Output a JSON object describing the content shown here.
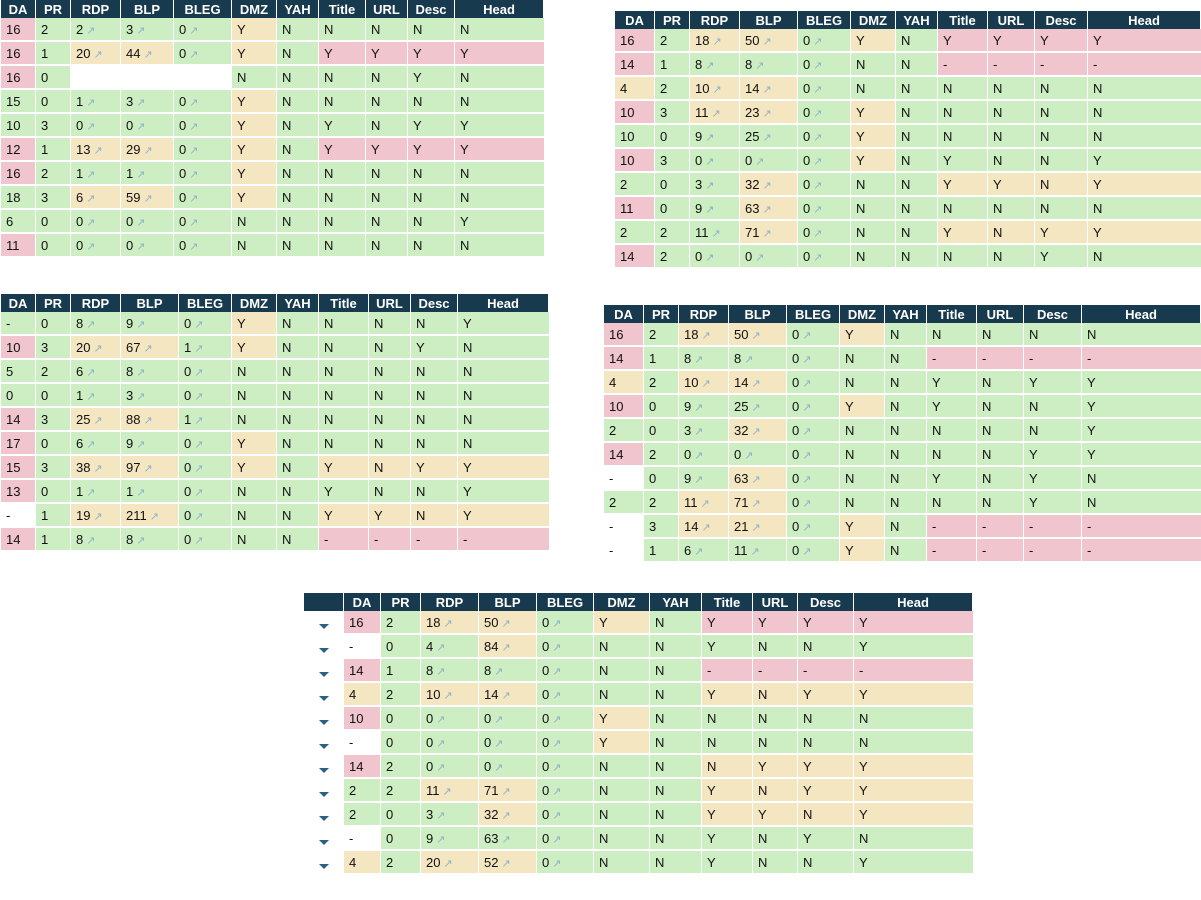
{
  "columns": [
    "DA",
    "PR",
    "RDP",
    "BLP",
    "BLEG",
    "DMZ",
    "YAH",
    "Title",
    "URL",
    "Desc",
    "Head"
  ],
  "trend_glyph": "↗",
  "colors": {
    "header": "#173a4f",
    "green": "#cdeec2",
    "yellow": "#f5e6c2",
    "pink": "#f1c5cd"
  },
  "tables": [
    {
      "rows": [
        [
          "16",
          "2",
          "2",
          "3",
          "0",
          "Y",
          "N",
          "N",
          "N",
          "N",
          "N"
        ],
        [
          "16",
          "1",
          "20",
          "44",
          "0",
          "Y",
          "N",
          "Y",
          "Y",
          "Y",
          "Y"
        ],
        [
          "16",
          "0",
          "",
          "",
          "",
          "N",
          "N",
          "N",
          "N",
          "Y",
          "N"
        ],
        [
          "15",
          "0",
          "1",
          "3",
          "0",
          "Y",
          "N",
          "N",
          "N",
          "N",
          "N"
        ],
        [
          "10",
          "3",
          "0",
          "0",
          "0",
          "Y",
          "N",
          "Y",
          "N",
          "Y",
          "Y"
        ],
        [
          "12",
          "1",
          "13",
          "29",
          "0",
          "Y",
          "N",
          "Y",
          "Y",
          "Y",
          "Y"
        ],
        [
          "16",
          "2",
          "1",
          "1",
          "0",
          "Y",
          "N",
          "N",
          "N",
          "N",
          "N"
        ],
        [
          "18",
          "3",
          "6",
          "59",
          "0",
          "Y",
          "N",
          "N",
          "N",
          "N",
          "N"
        ],
        [
          "6",
          "0",
          "0",
          "0",
          "0",
          "N",
          "N",
          "N",
          "N",
          "N",
          "Y"
        ],
        [
          "11",
          "0",
          "0",
          "0",
          "0",
          "N",
          "N",
          "N",
          "N",
          "N",
          "N"
        ]
      ]
    },
    {
      "rows": [
        [
          "16",
          "2",
          "18",
          "50",
          "0",
          "Y",
          "N",
          "Y",
          "Y",
          "Y",
          "Y"
        ],
        [
          "14",
          "1",
          "8",
          "8",
          "0",
          "N",
          "N",
          "-",
          "-",
          "-",
          "-"
        ],
        [
          "4",
          "2",
          "10",
          "14",
          "0",
          "N",
          "N",
          "N",
          "N",
          "N",
          "N"
        ],
        [
          "10",
          "3",
          "11",
          "23",
          "0",
          "Y",
          "N",
          "N",
          "N",
          "N",
          "N"
        ],
        [
          "10",
          "0",
          "9",
          "25",
          "0",
          "Y",
          "N",
          "N",
          "N",
          "N",
          "N"
        ],
        [
          "10",
          "3",
          "0",
          "0",
          "0",
          "Y",
          "N",
          "Y",
          "N",
          "N",
          "Y"
        ],
        [
          "2",
          "0",
          "3",
          "32",
          "0",
          "N",
          "N",
          "Y",
          "Y",
          "N",
          "Y"
        ],
        [
          "11",
          "0",
          "9",
          "63",
          "0",
          "N",
          "N",
          "N",
          "N",
          "N",
          "N"
        ],
        [
          "2",
          "2",
          "11",
          "71",
          "0",
          "N",
          "N",
          "Y",
          "N",
          "Y",
          "Y"
        ],
        [
          "14",
          "2",
          "0",
          "0",
          "0",
          "N",
          "N",
          "N",
          "N",
          "Y",
          "N"
        ]
      ]
    },
    {
      "rows": [
        [
          "-",
          "0",
          "8",
          "9",
          "0",
          "Y",
          "N",
          "N",
          "N",
          "N",
          "Y"
        ],
        [
          "10",
          "3",
          "20",
          "67",
          "1",
          "Y",
          "N",
          "N",
          "N",
          "Y",
          "N"
        ],
        [
          "5",
          "2",
          "6",
          "8",
          "0",
          "N",
          "N",
          "N",
          "N",
          "N",
          "N"
        ],
        [
          "0",
          "0",
          "1",
          "3",
          "0",
          "N",
          "N",
          "N",
          "N",
          "N",
          "N"
        ],
        [
          "14",
          "3",
          "25",
          "88",
          "1",
          "N",
          "N",
          "N",
          "N",
          "N",
          "N"
        ],
        [
          "17",
          "0",
          "6",
          "9",
          "0",
          "Y",
          "N",
          "N",
          "N",
          "N",
          "N"
        ],
        [
          "15",
          "3",
          "38",
          "97",
          "0",
          "Y",
          "N",
          "Y",
          "N",
          "Y",
          "Y"
        ],
        [
          "13",
          "0",
          "1",
          "1",
          "0",
          "N",
          "N",
          "Y",
          "N",
          "N",
          "Y"
        ],
        [
          "-",
          "1",
          "19",
          "211",
          "0",
          "N",
          "N",
          "Y",
          "Y",
          "N",
          "Y"
        ],
        [
          "14",
          "1",
          "8",
          "8",
          "0",
          "N",
          "N",
          "-",
          "-",
          "-",
          "-"
        ]
      ]
    },
    {
      "rows": [
        [
          "16",
          "2",
          "18",
          "50",
          "0",
          "Y",
          "N",
          "N",
          "N",
          "N",
          "N"
        ],
        [
          "14",
          "1",
          "8",
          "8",
          "0",
          "N",
          "N",
          "-",
          "-",
          "-",
          "-"
        ],
        [
          "4",
          "2",
          "10",
          "14",
          "0",
          "N",
          "N",
          "Y",
          "N",
          "Y",
          "Y"
        ],
        [
          "10",
          "0",
          "9",
          "25",
          "0",
          "Y",
          "N",
          "Y",
          "N",
          "N",
          "Y"
        ],
        [
          "2",
          "0",
          "3",
          "32",
          "0",
          "N",
          "N",
          "N",
          "N",
          "N",
          "Y"
        ],
        [
          "14",
          "2",
          "0",
          "0",
          "0",
          "N",
          "N",
          "N",
          "N",
          "Y",
          "Y"
        ],
        [
          "-",
          "0",
          "9",
          "63",
          "0",
          "N",
          "N",
          "Y",
          "N",
          "Y",
          "N"
        ],
        [
          "2",
          "2",
          "11",
          "71",
          "0",
          "N",
          "N",
          "N",
          "N",
          "Y",
          "N"
        ],
        [
          "-",
          "3",
          "14",
          "21",
          "0",
          "Y",
          "N",
          "-",
          "-",
          "-",
          "-"
        ],
        [
          "-",
          "1",
          "6",
          "11",
          "0",
          "Y",
          "N",
          "-",
          "-",
          "-",
          "-"
        ]
      ]
    },
    {
      "rows": [
        [
          "16",
          "2",
          "18",
          "50",
          "0",
          "Y",
          "N",
          "Y",
          "Y",
          "Y",
          "Y"
        ],
        [
          "-",
          "0",
          "4",
          "84",
          "0",
          "N",
          "N",
          "Y",
          "N",
          "N",
          "Y"
        ],
        [
          "14",
          "1",
          "8",
          "8",
          "0",
          "N",
          "N",
          "-",
          "-",
          "-",
          "-"
        ],
        [
          "4",
          "2",
          "10",
          "14",
          "0",
          "N",
          "N",
          "Y",
          "N",
          "Y",
          "Y"
        ],
        [
          "10",
          "0",
          "0",
          "0",
          "0",
          "Y",
          "N",
          "N",
          "N",
          "N",
          "N"
        ],
        [
          "-",
          "0",
          "0",
          "0",
          "0",
          "Y",
          "N",
          "N",
          "N",
          "N",
          "N"
        ],
        [
          "14",
          "2",
          "0",
          "0",
          "0",
          "N",
          "N",
          "N",
          "Y",
          "Y",
          "Y"
        ],
        [
          "2",
          "2",
          "11",
          "71",
          "0",
          "N",
          "N",
          "Y",
          "N",
          "Y",
          "Y"
        ],
        [
          "2",
          "0",
          "3",
          "32",
          "0",
          "N",
          "N",
          "Y",
          "Y",
          "N",
          "Y"
        ],
        [
          "-",
          "0",
          "9",
          "63",
          "0",
          "N",
          "N",
          "Y",
          "N",
          "Y",
          "N"
        ],
        [
          "4",
          "2",
          "20",
          "52",
          "0",
          "N",
          "N",
          "Y",
          "N",
          "N",
          "Y"
        ]
      ]
    }
  ]
}
